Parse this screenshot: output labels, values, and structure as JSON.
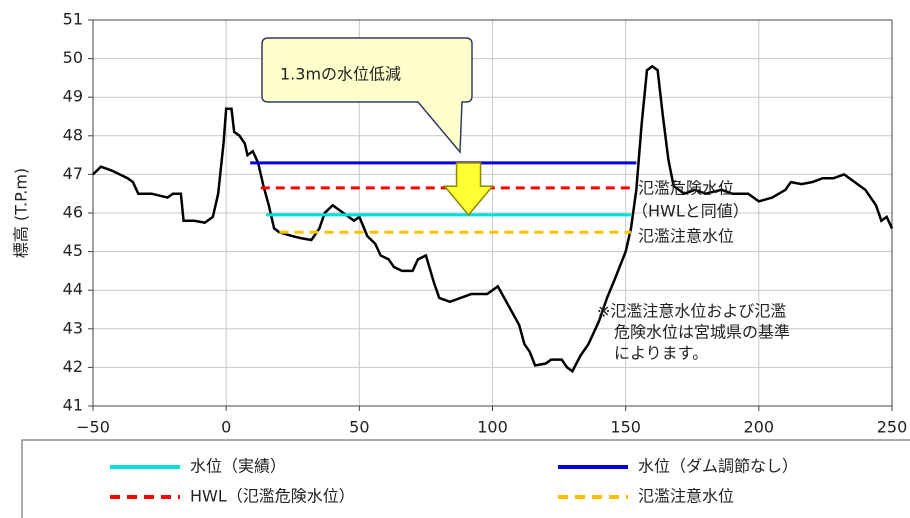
{
  "chart_data": {
    "type": "line",
    "ylabel": "標高 (T.P.m)",
    "xlim": [
      -50,
      250
    ],
    "xticks": [
      {
        "value": -50,
        "label": "−50"
      },
      0,
      50,
      100,
      150,
      200,
      250
    ],
    "ylim": [
      41,
      51
    ],
    "yticks": [
      41,
      42,
      43,
      44,
      45,
      46,
      47,
      48,
      49,
      50,
      51
    ],
    "grid": true,
    "ground": {
      "color": "#000000",
      "x": [
        -50,
        -47,
        -43,
        -40,
        -37,
        -35,
        -33,
        -28,
        -22,
        -20,
        -17,
        -16,
        -12,
        -8,
        -5,
        -3,
        -1,
        0,
        2,
        3,
        5,
        7,
        8,
        10,
        12,
        14,
        16,
        17,
        18,
        20,
        25,
        28,
        32,
        35,
        37,
        40,
        42,
        45,
        48,
        50,
        53,
        56,
        58,
        61,
        63,
        66,
        70,
        72,
        75,
        78,
        80,
        84,
        88,
        92,
        98,
        102,
        106,
        110,
        112,
        114,
        116,
        120,
        122,
        126,
        128,
        130,
        133,
        136,
        140,
        143,
        146,
        150,
        152,
        154,
        156,
        158,
        160,
        162,
        164,
        166,
        168,
        172,
        176,
        180,
        186,
        190,
        196,
        200,
        205,
        210,
        212,
        216,
        220,
        224,
        228,
        232,
        236,
        240,
        244,
        246,
        248,
        250
      ],
      "values": [
        47.0,
        47.2,
        47.1,
        47.0,
        46.9,
        46.8,
        46.5,
        46.5,
        46.4,
        46.5,
        46.5,
        45.8,
        45.8,
        45.75,
        45.9,
        46.5,
        47.8,
        48.7,
        48.7,
        48.1,
        48.0,
        47.8,
        47.5,
        47.6,
        47.3,
        46.7,
        46.2,
        45.9,
        45.6,
        45.5,
        45.4,
        45.35,
        45.3,
        45.6,
        46.0,
        46.2,
        46.1,
        45.95,
        45.8,
        45.9,
        45.4,
        45.2,
        44.9,
        44.8,
        44.6,
        44.5,
        44.5,
        44.8,
        44.9,
        44.2,
        43.8,
        43.7,
        43.8,
        43.9,
        43.9,
        44.1,
        43.6,
        43.1,
        42.6,
        42.4,
        42.05,
        42.1,
        42.2,
        42.2,
        42.0,
        41.9,
        42.3,
        42.6,
        43.2,
        43.8,
        44.3,
        45.0,
        45.6,
        46.6,
        48.3,
        49.7,
        49.8,
        49.7,
        48.5,
        47.4,
        46.7,
        46.5,
        46.6,
        46.5,
        46.6,
        46.5,
        46.5,
        46.3,
        46.4,
        46.6,
        46.8,
        46.75,
        46.8,
        46.9,
        46.9,
        47.0,
        46.8,
        46.6,
        46.2,
        45.8,
        45.9,
        45.6
      ]
    },
    "series": [
      {
        "name": "水位（実績）",
        "color": "#00e0e0",
        "dashed": false,
        "x": [
          15,
          152
        ],
        "values": [
          45.95,
          45.95
        ]
      },
      {
        "name": "水位（ダム調節なし）",
        "color": "#0000dd",
        "dashed": false,
        "x": [
          9,
          154
        ],
        "values": [
          47.3,
          47.3
        ]
      },
      {
        "name": "HWL（氾濫危険水位）",
        "color": "#ff0000",
        "dashed": true,
        "x": [
          13,
          152
        ],
        "values": [
          46.65,
          46.65
        ]
      },
      {
        "name": "氾濫注意水位",
        "color": "#ffc000",
        "dashed": true,
        "x": [
          20,
          152
        ],
        "values": [
          45.5,
          45.5
        ]
      }
    ],
    "annotations": [
      "1.3mの水位低減",
      "氾濫危険水位",
      "（HWLと同値）",
      "氾濫注意水位",
      "※氾濫注意水位および氾濫",
      "危険水位は宮城県の基準",
      "によります。"
    ]
  }
}
